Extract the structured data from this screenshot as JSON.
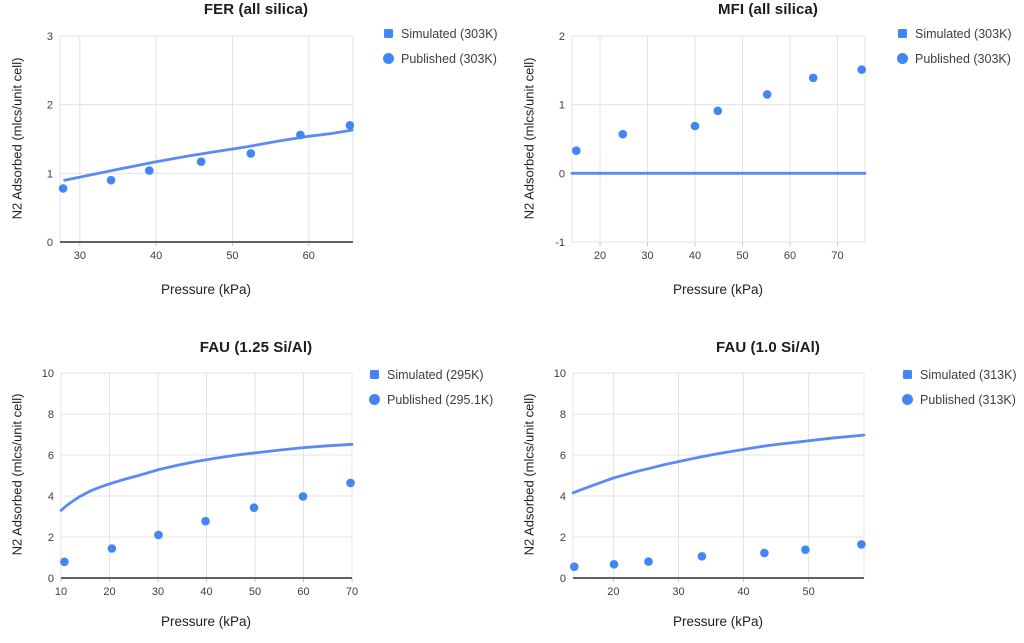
{
  "colors": {
    "marker_blue": "#4285f4",
    "line_blue": "#5b8af5",
    "grid": "#e3e3e3",
    "axis": "#616161",
    "tick_mark": "#c7c7c7",
    "tick_text": "#3c4043"
  },
  "chart_data": [
    {
      "id": "fer",
      "type": "line",
      "title": "FER (all silica)",
      "xlabel": "Pressure (kPa)",
      "ylabel": "N2 Adsorbed (mlcs/unit cell)",
      "xlim": [
        27.4,
        65.8
      ],
      "ylim": [
        0,
        3
      ],
      "xticks": [
        30,
        40,
        50,
        60
      ],
      "yticks": [
        0,
        1,
        2,
        3
      ],
      "grid": true,
      "legend_position": "right",
      "legend": [
        {
          "label": "Simulated (303K)",
          "marker": "square"
        },
        {
          "label": "Published (303K)",
          "marker": "circle"
        }
      ],
      "series": [
        {
          "name": "Simulated (303K)",
          "type": "line",
          "points": [
            [
              28,
              0.9
            ],
            [
              32,
              0.99
            ],
            [
              36,
              1.08
            ],
            [
              40,
              1.17
            ],
            [
              44,
              1.25
            ],
            [
              48,
              1.32
            ],
            [
              52,
              1.39
            ],
            [
              56,
              1.47
            ],
            [
              60,
              1.54
            ],
            [
              63,
              1.58
            ],
            [
              65.7,
              1.63
            ]
          ]
        },
        {
          "name": "Published (303K)",
          "type": "scatter",
          "points": [
            [
              27.8,
              0.78
            ],
            [
              34.1,
              0.9
            ],
            [
              39.1,
              1.04
            ],
            [
              45.9,
              1.17
            ],
            [
              52.4,
              1.29
            ],
            [
              58.9,
              1.56
            ],
            [
              65.4,
              1.7
            ]
          ]
        }
      ]
    },
    {
      "id": "mfi",
      "type": "line",
      "title": "MFI (all silica)",
      "xlabel": "Pressure (kPa)",
      "ylabel": "N2 Adsorbed (mlcs/unit cell)",
      "xlim": [
        14.1,
        75.8
      ],
      "ylim": [
        -1,
        2
      ],
      "xticks": [
        20,
        30,
        40,
        50,
        60,
        70
      ],
      "yticks": [
        -1,
        0,
        1,
        2
      ],
      "grid": true,
      "legend_position": "right",
      "legend": [
        {
          "label": "Simulated (303K)",
          "marker": "square"
        },
        {
          "label": "Published (303K)",
          "marker": "circle"
        }
      ],
      "series": [
        {
          "name": "Simulated (303K)",
          "type": "line",
          "points": [
            [
              14.1,
              0
            ],
            [
              75.8,
              0
            ]
          ]
        },
        {
          "name": "Published (303K)",
          "type": "scatter",
          "points": [
            [
              15,
              0.33
            ],
            [
              24.8,
              0.57
            ],
            [
              40,
              0.69
            ],
            [
              44.8,
              0.91
            ],
            [
              55.2,
              1.15
            ],
            [
              64.9,
              1.39
            ],
            [
              75.1,
              1.51
            ]
          ]
        }
      ]
    },
    {
      "id": "fau-1.25",
      "type": "line",
      "title": "FAU (1.25 Si/Al)",
      "xlabel": "Pressure (kPa)",
      "ylabel": "N2 Adsorbed (mlcs/unit cell)",
      "xlim": [
        10,
        70
      ],
      "ylim": [
        0,
        10
      ],
      "xticks": [
        10,
        20,
        30,
        40,
        50,
        60,
        70
      ],
      "yticks": [
        0,
        2,
        4,
        6,
        8,
        10
      ],
      "grid": true,
      "legend_position": "right",
      "legend": [
        {
          "label": "Simulated (295K)",
          "marker": "square"
        },
        {
          "label": "Published (295.1K)",
          "marker": "circle"
        }
      ],
      "series": [
        {
          "name": "Simulated (295K)",
          "type": "line",
          "points": [
            [
              10,
              3.3
            ],
            [
              11,
              3.5
            ],
            [
              12,
              3.68
            ],
            [
              13,
              3.84
            ],
            [
              14,
              3.99
            ],
            [
              16,
              4.24
            ],
            [
              18,
              4.43
            ],
            [
              20,
              4.59
            ],
            [
              23,
              4.81
            ],
            [
              26,
              5.0
            ],
            [
              30,
              5.28
            ],
            [
              34,
              5.5
            ],
            [
              38,
              5.69
            ],
            [
              42,
              5.85
            ],
            [
              46,
              5.99
            ],
            [
              50,
              6.1
            ],
            [
              55,
              6.24
            ],
            [
              60,
              6.36
            ],
            [
              65,
              6.45
            ],
            [
              70,
              6.52
            ]
          ]
        },
        {
          "name": "Published (295.1K)",
          "type": "scatter",
          "points": [
            [
              10.7,
              0.79
            ],
            [
              20.5,
              1.44
            ],
            [
              30.1,
              2.1
            ],
            [
              39.8,
              2.77
            ],
            [
              49.8,
              3.43
            ],
            [
              59.9,
              3.98
            ],
            [
              69.7,
              4.64
            ]
          ]
        }
      ]
    },
    {
      "id": "fau-1.0",
      "type": "line",
      "title": "FAU (1.0 Si/Al)",
      "xlabel": "Pressure (kPa)",
      "ylabel": "N2 Adsorbed (mlcs/unit cell)",
      "xlim": [
        13.8,
        58.5
      ],
      "ylim": [
        0,
        10
      ],
      "xticks": [
        20,
        30,
        40,
        50
      ],
      "yticks": [
        0,
        2,
        4,
        6,
        8,
        10
      ],
      "grid": true,
      "legend_position": "right",
      "legend": [
        {
          "label": "Simulated (313K)",
          "marker": "square"
        },
        {
          "label": "Published (313K)",
          "marker": "circle"
        }
      ],
      "series": [
        {
          "name": "Simulated (313K)",
          "type": "line",
          "points": [
            [
              13.8,
              4.15
            ],
            [
              15,
              4.3
            ],
            [
              16,
              4.42
            ],
            [
              18,
              4.65
            ],
            [
              20,
              4.88
            ],
            [
              22,
              5.06
            ],
            [
              24,
              5.23
            ],
            [
              26,
              5.38
            ],
            [
              28,
              5.54
            ],
            [
              30,
              5.68
            ],
            [
              33,
              5.88
            ],
            [
              36,
              6.06
            ],
            [
              39,
              6.22
            ],
            [
              42,
              6.38
            ],
            [
              45,
              6.51
            ],
            [
              48,
              6.62
            ],
            [
              51,
              6.73
            ],
            [
              54,
              6.84
            ],
            [
              58.5,
              6.97
            ]
          ]
        },
        {
          "name": "Published (313K)",
          "type": "scatter",
          "points": [
            [
              14,
              0.55
            ],
            [
              20.1,
              0.67
            ],
            [
              25.4,
              0.8
            ],
            [
              33.6,
              1.06
            ],
            [
              43.2,
              1.22
            ],
            [
              49.5,
              1.38
            ],
            [
              58.1,
              1.64
            ]
          ]
        }
      ]
    }
  ]
}
